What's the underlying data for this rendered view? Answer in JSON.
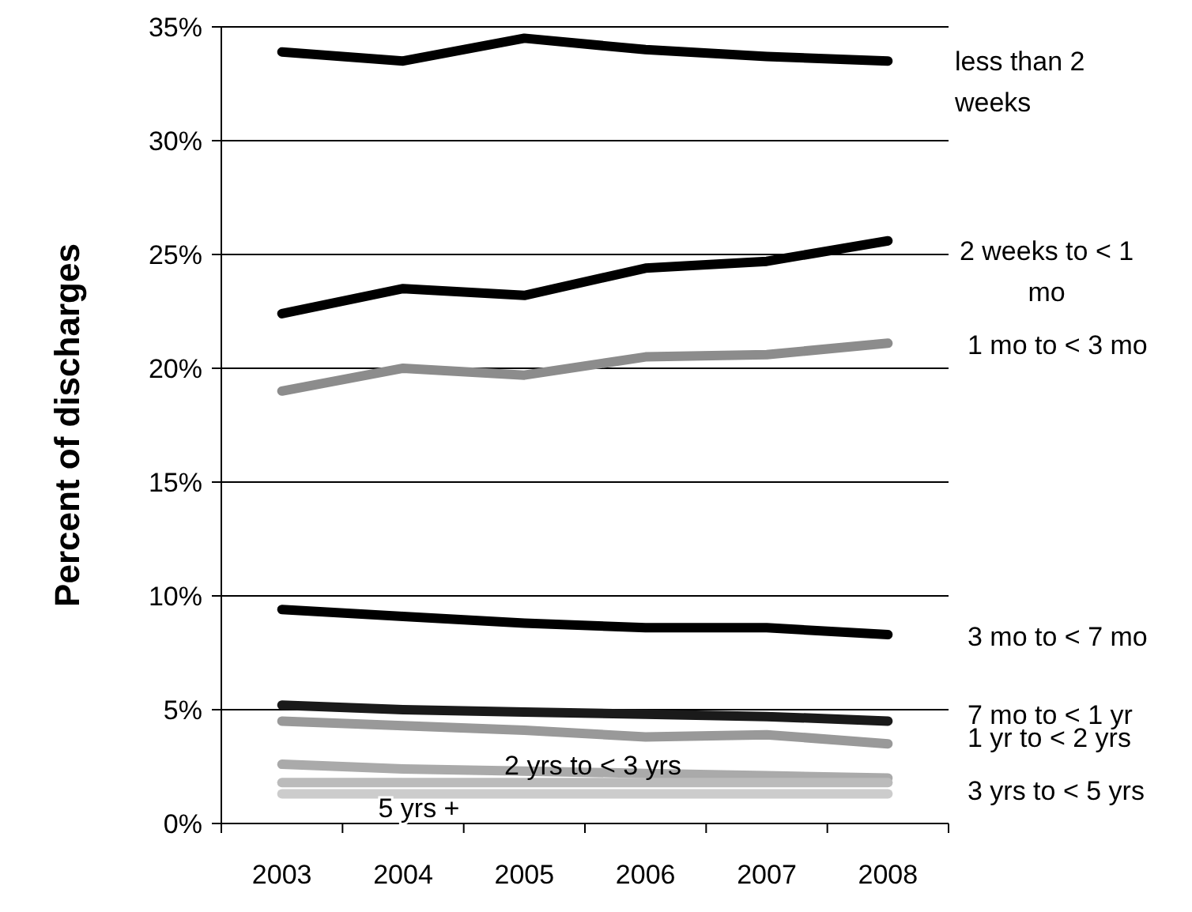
{
  "chart_data": {
    "type": "line",
    "ylabel": "Percent of discharges",
    "categories": [
      "2003",
      "2004",
      "2005",
      "2006",
      "2007",
      "2008"
    ],
    "ylim": [
      0,
      35
    ],
    "yticks": [
      {
        "value": 0,
        "label": "0%"
      },
      {
        "value": 5,
        "label": "5%"
      },
      {
        "value": 10,
        "label": "10%"
      },
      {
        "value": 15,
        "label": "15%"
      },
      {
        "value": 20,
        "label": "20%"
      },
      {
        "value": 25,
        "label": "25%"
      },
      {
        "value": 30,
        "label": "30%"
      },
      {
        "value": 35,
        "label": "35%"
      }
    ],
    "grid": "y",
    "legend": false,
    "marker": "none",
    "line_style": "solid",
    "series": [
      {
        "name": "less than 2 weeks",
        "color": "#000000",
        "values": [
          33.9,
          33.5,
          34.5,
          34.0,
          33.7,
          33.5
        ]
      },
      {
        "name": "2 weeks to < 1 mo",
        "color": "#000000",
        "values": [
          22.4,
          23.5,
          23.2,
          24.4,
          24.7,
          25.6
        ]
      },
      {
        "name": "1 mo to < 3 mo",
        "color": "#8c8c8c",
        "values": [
          19.0,
          20.0,
          19.7,
          20.5,
          20.6,
          21.1
        ]
      },
      {
        "name": "3 mo to < 7 mo",
        "color": "#000000",
        "values": [
          9.4,
          9.1,
          8.8,
          8.6,
          8.6,
          8.3
        ]
      },
      {
        "name": "7 mo to < 1 yr",
        "color": "#1a1a1a",
        "values": [
          5.2,
          5.0,
          4.9,
          4.8,
          4.7,
          4.5
        ]
      },
      {
        "name": "1 yr to < 2 yrs",
        "color": "#999999",
        "values": [
          4.5,
          4.3,
          4.1,
          3.8,
          3.9,
          3.5
        ]
      },
      {
        "name": "2 yrs to < 3 yrs",
        "color": "#aaaaaa",
        "values": [
          2.6,
          2.4,
          2.3,
          2.2,
          2.1,
          2.0
        ]
      },
      {
        "name": "3 yrs to < 5 yrs",
        "color": "#bbbbbb",
        "values": [
          1.8,
          1.8,
          1.8,
          1.8,
          1.8,
          1.8
        ]
      },
      {
        "name": "5 yrs +",
        "color": "#cccccc",
        "values": [
          1.3,
          1.3,
          1.3,
          1.3,
          1.3,
          1.3
        ]
      }
    ]
  }
}
